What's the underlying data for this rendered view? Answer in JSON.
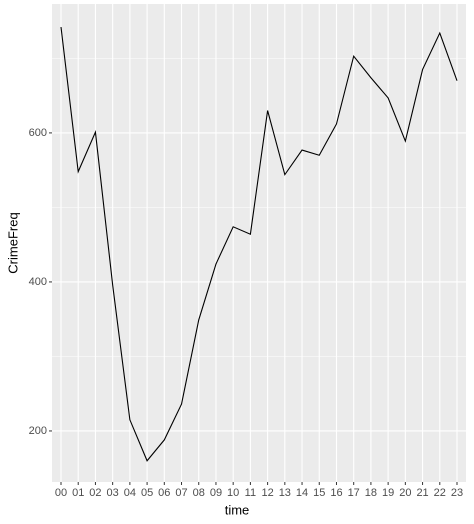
{
  "chart_data": {
    "type": "line",
    "x_label": "time",
    "y_label": "CrimeFreq",
    "categories": [
      "00",
      "01",
      "02",
      "03",
      "04",
      "05",
      "06",
      "07",
      "08",
      "09",
      "10",
      "11",
      "12",
      "13",
      "14",
      "15",
      "16",
      "17",
      "18",
      "19",
      "20",
      "21",
      "22",
      "23"
    ],
    "values": [
      742,
      548,
      601,
      396,
      215,
      160,
      188,
      236,
      349,
      424,
      474,
      464,
      630,
      544,
      577,
      570,
      612,
      703,
      674,
      647,
      589,
      685,
      734,
      670
    ],
    "color": "#000000",
    "ylim": [
      131.5,
      773
    ],
    "yticks": [
      200,
      400,
      600
    ],
    "grid": true
  }
}
